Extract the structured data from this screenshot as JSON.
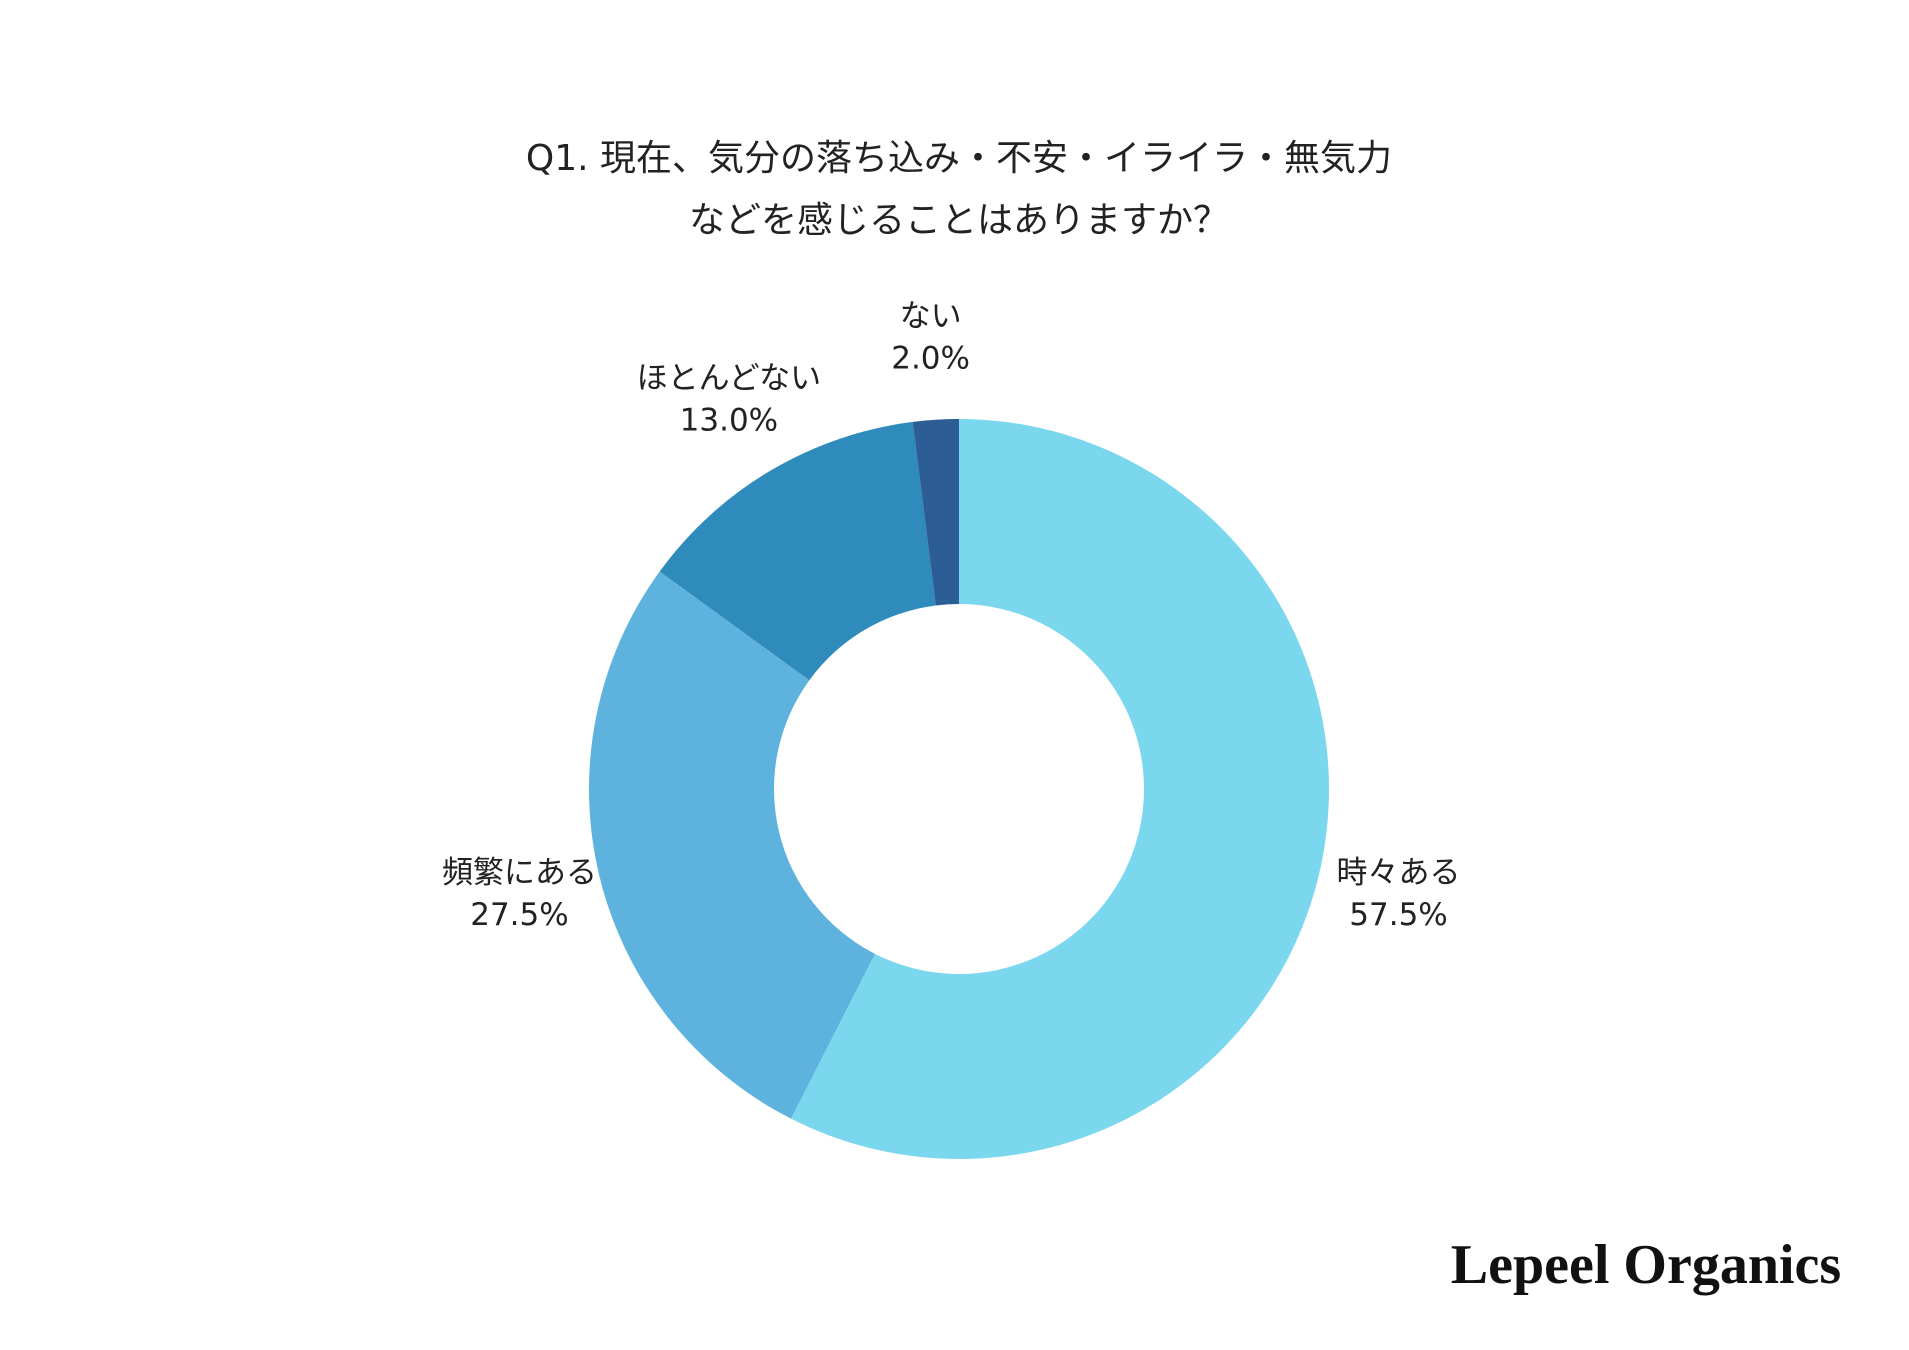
{
  "chart_data": {
    "type": "donut",
    "title_lines": [
      "Q1. 現在、気分の落ち込み・不安・イライラ・無気力",
      "などを感じることはありますか？"
    ],
    "categories": [
      "時々ある",
      "頻繁にある",
      "ほとんどない",
      "ない"
    ],
    "values": [
      57.5,
      27.5,
      13.0,
      2.0
    ],
    "value_labels": [
      "57.5%",
      "27.5%",
      "13.0%",
      "2.0%"
    ],
    "colors": [
      "#7ad7ee",
      "#5eb3de",
      "#2e8bbb",
      "#2c5d94"
    ]
  },
  "brand": "Lepeel Organics"
}
